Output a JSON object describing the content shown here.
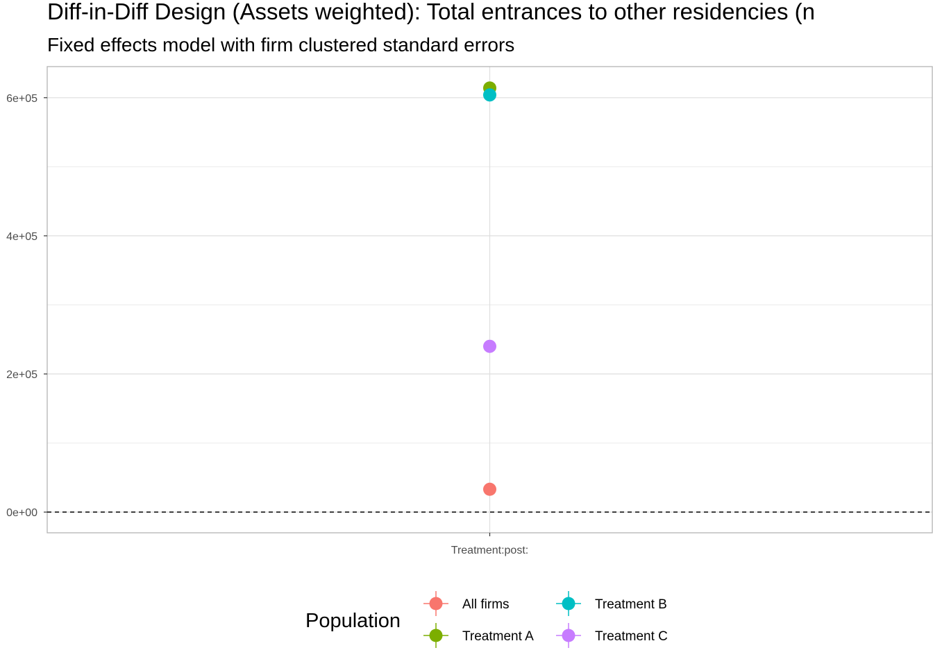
{
  "chart_data": {
    "type": "scatter",
    "title": "Diff-in-Diff Design (Assets weighted): Total entrances to other residencies (n",
    "subtitle": "Fixed effects model with firm clustered standard errors",
    "xlabel": "",
    "ylabel": "",
    "categories": [
      "Treatment:post:"
    ],
    "ylim": [
      -30000,
      645000
    ],
    "y_ticks": [
      0,
      200000,
      400000,
      600000
    ],
    "y_tick_labels": [
      "0e+00",
      "2e+05",
      "4e+05",
      "6e+05"
    ],
    "y_minor_gridlines": [
      100000,
      300000,
      500000
    ],
    "reference_line": {
      "y": 0,
      "style": "dashed"
    },
    "grid": true,
    "legend": {
      "title": "Population",
      "position": "bottom"
    },
    "series": [
      {
        "name": "All firms",
        "color": "#F8766D",
        "values": [
          33000
        ]
      },
      {
        "name": "Treatment A",
        "color": "#7CAE00",
        "values": [
          614000
        ]
      },
      {
        "name": "Treatment B",
        "color": "#00BFC4",
        "values": [
          604000
        ]
      },
      {
        "name": "Treatment C",
        "color": "#C77CFF",
        "values": [
          240000
        ]
      }
    ]
  }
}
